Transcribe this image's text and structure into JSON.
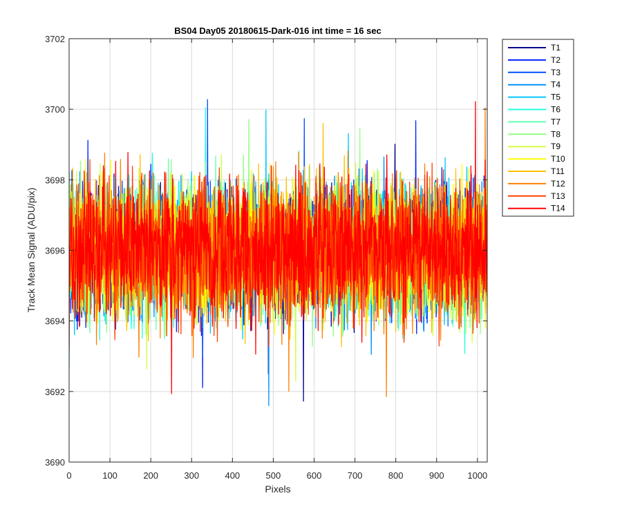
{
  "chart_data": {
    "type": "line",
    "title": "BS04 Day05 20180615-Dark-016 int time = 16 sec",
    "xlabel": "Pixels",
    "ylabel": "Track Mean Signal (ADU/pix)",
    "xlim": [
      0,
      1024
    ],
    "ylim": [
      3690,
      3702
    ],
    "xticks": [
      "0",
      "100",
      "200",
      "300",
      "400",
      "500",
      "600",
      "700",
      "800",
      "900",
      "1000"
    ],
    "yticks": [
      "3690",
      "3692",
      "3694",
      "3696",
      "3698",
      "3700",
      "3702"
    ],
    "grid": true,
    "legend_position": "outside-right",
    "noise_summary": {
      "mean": 3696.0,
      "typical_min": 3693.0,
      "typical_max": 3699.5,
      "observed_min": 3691.6,
      "observed_max": 3701.3
    },
    "series": [
      {
        "name": "T1",
        "color": "#00008f"
      },
      {
        "name": "T2",
        "color": "#0020ff"
      },
      {
        "name": "T3",
        "color": "#0050ff"
      },
      {
        "name": "T4",
        "color": "#0090ff"
      },
      {
        "name": "T5",
        "color": "#00c8ff"
      },
      {
        "name": "T6",
        "color": "#20ffe0"
      },
      {
        "name": "T7",
        "color": "#60ffb0"
      },
      {
        "name": "T8",
        "color": "#90ff80"
      },
      {
        "name": "T9",
        "color": "#d0ff40"
      },
      {
        "name": "T10",
        "color": "#ffff00"
      },
      {
        "name": "T11",
        "color": "#ffc000"
      },
      {
        "name": "T12",
        "color": "#ff8000"
      },
      {
        "name": "T13",
        "color": "#ff4000"
      },
      {
        "name": "T14",
        "color": "#ff0000"
      }
    ]
  }
}
